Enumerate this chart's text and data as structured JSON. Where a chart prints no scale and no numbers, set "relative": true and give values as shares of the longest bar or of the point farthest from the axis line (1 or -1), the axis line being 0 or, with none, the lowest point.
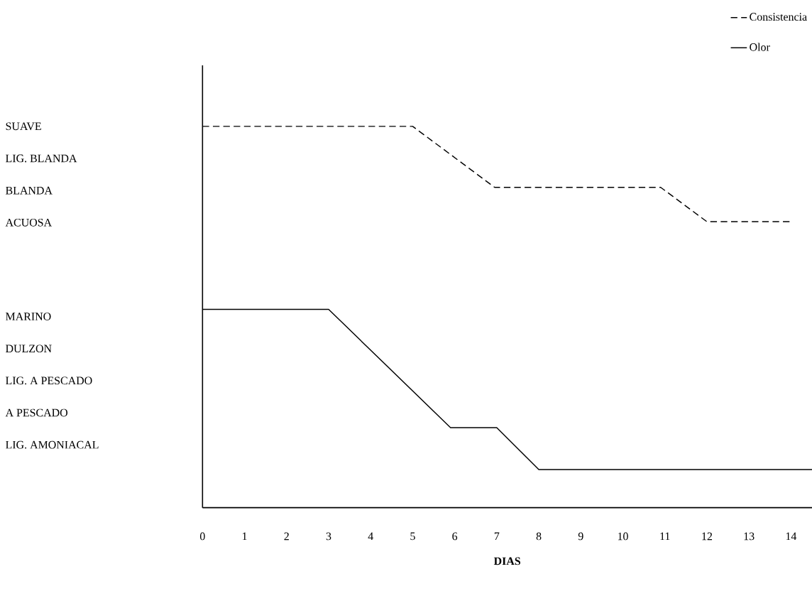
{
  "chart_data": {
    "type": "line",
    "xlabel": "DIAS",
    "relative": true,
    "xlim": [
      0,
      14.5
    ],
    "xticks": [
      0,
      1,
      2,
      3,
      4,
      5,
      6,
      7,
      8,
      9,
      10,
      11,
      12,
      13,
      14
    ],
    "annotations": [
      "SUAVE",
      "LIG.  BLANDA",
      "BLANDA",
      "ACUOSA",
      "MARINO",
      "DULZON",
      "LIG.  A PESCADO",
      "A  PESCADO",
      "LIG.  AMONIACAL"
    ],
    "legend": "top right",
    "grid": false,
    "marker": "none",
    "series": [
      {
        "name": "Consistencia",
        "color": "#000000",
        "line_style": "dashed",
        "x": [
          0,
          5,
          6.95,
          10.9,
          12,
          14
        ],
        "values": [
          1,
          1,
          0.84,
          0.84,
          0.75,
          0.75
        ]
      },
      {
        "name": "Olor",
        "color": "#000000",
        "line_style": "solid",
        "x": [
          0,
          3,
          5.9,
          7,
          8,
          14.5
        ],
        "values": [
          0.52,
          0.52,
          0.21,
          0.21,
          0.1,
          0.1
        ]
      }
    ]
  }
}
